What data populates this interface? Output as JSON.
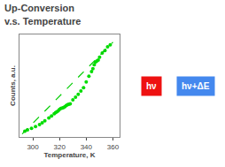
{
  "chart_data": {
    "type": "scatter",
    "title": "Up-Conversion\nv.s. Temperature",
    "x_label": "Temperature, K",
    "y_label": "Counts, a.u.",
    "series": [
      {
        "type": "scatter",
        "color": "#00dd00",
        "marker": "circle",
        "x": [
          294,
          296,
          299,
          302,
          305,
          307,
          309,
          312,
          314,
          316,
          317,
          318,
          319,
          320,
          321,
          322,
          323,
          324,
          325,
          326,
          327,
          328,
          330,
          332,
          334,
          336,
          338,
          340,
          342,
          344,
          345,
          346,
          347,
          348,
          349,
          350,
          352,
          354,
          356,
          358
        ],
        "values": [
          0.03,
          0.045,
          0.06,
          0.08,
          0.1,
          0.12,
          0.14,
          0.17,
          0.19,
          0.215,
          0.225,
          0.235,
          0.245,
          0.26,
          0.27,
          0.275,
          0.28,
          0.29,
          0.3,
          0.31,
          0.315,
          0.32,
          0.36,
          0.39,
          0.42,
          0.455,
          0.49,
          0.55,
          0.61,
          0.66,
          0.69,
          0.73,
          0.76,
          0.77,
          0.78,
          0.81,
          0.855,
          0.88,
          0.92,
          0.94
        ]
      },
      {
        "type": "line",
        "color": "#00cc00",
        "line_style": "dashed",
        "x": [
          292,
          360
        ],
        "values": [
          0.0015625,
          0.9684375
        ]
      }
    ],
    "xlim": [
      290,
      365
    ],
    "xticks": [
      300,
      320,
      340,
      360
    ],
    "ylim": [
      -0.03,
      1.05
    ],
    "tick_labels": "x",
    "grid": false,
    "annotations": [
      {
        "text": "hν",
        "color": "#ee1111"
      },
      {
        "text": "hν+ΔE",
        "color": "#4488ee"
      }
    ]
  }
}
